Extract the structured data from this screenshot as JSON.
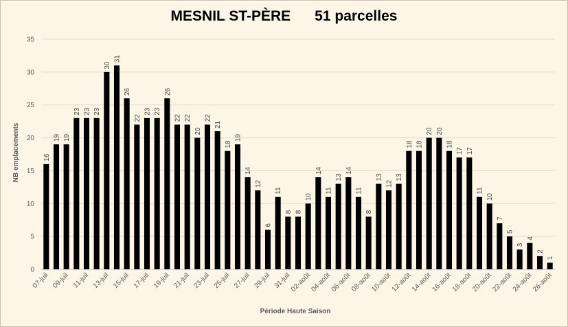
{
  "chart_data": {
    "type": "bar",
    "title": "MESNIL ST-PÈRE      51 parcelles",
    "xlabel": "Période Haute Saison",
    "ylabel": "NB emplacements",
    "ylim": [
      0,
      35
    ],
    "yticks": [
      0,
      5,
      10,
      15,
      20,
      25,
      30,
      35
    ],
    "grid": true,
    "legend": "none",
    "bar_color": "#000000",
    "categories": [
      "07-juil",
      "08-juil",
      "09-juil",
      "10-juil",
      "11-juil",
      "12-juil",
      "13-juil",
      "14-juil",
      "15-juil",
      "16-juil",
      "17-juil",
      "18-juil",
      "19-juil",
      "20-juil",
      "21-juil",
      "22-juil",
      "23-juil",
      "24-juil",
      "25-juil",
      "26-juil",
      "27-juil",
      "28-juil",
      "29-juil",
      "30-juil",
      "31-juil",
      "01-août",
      "02-août",
      "03-août",
      "04-août",
      "05-août",
      "06-août",
      "07-août",
      "08-août",
      "09-août",
      "10-août",
      "11-août",
      "12-août",
      "13-août",
      "14-août",
      "15-août",
      "16-août",
      "17-août",
      "18-août",
      "19-août",
      "20-août",
      "21-août",
      "22-août",
      "23-août",
      "24-août",
      "25-août",
      "26-août"
    ],
    "values": [
      16,
      19,
      19,
      23,
      23,
      23,
      30,
      31,
      26,
      22,
      23,
      23,
      26,
      22,
      22,
      20,
      22,
      21,
      18,
      19,
      14,
      12,
      6,
      11,
      8,
      8,
      10,
      14,
      11,
      13,
      14,
      11,
      8,
      13,
      12,
      13,
      18,
      18,
      20,
      20,
      18,
      17,
      17,
      11,
      10,
      7,
      5,
      3,
      4,
      2,
      1
    ],
    "xtick_labels": [
      "07-juil",
      "09-juil",
      "11-juil",
      "13-juil",
      "15-juil",
      "17-juil",
      "19-juil",
      "21-juil",
      "23-juil",
      "25-juil",
      "27-juil",
      "29-juil",
      "31-juil",
      "02-août",
      "04-août",
      "06-août",
      "08-août",
      "10-août",
      "12-août",
      "14-août",
      "16-août",
      "18-août",
      "20-août",
      "22-août",
      "24-août",
      "26-août"
    ]
  }
}
